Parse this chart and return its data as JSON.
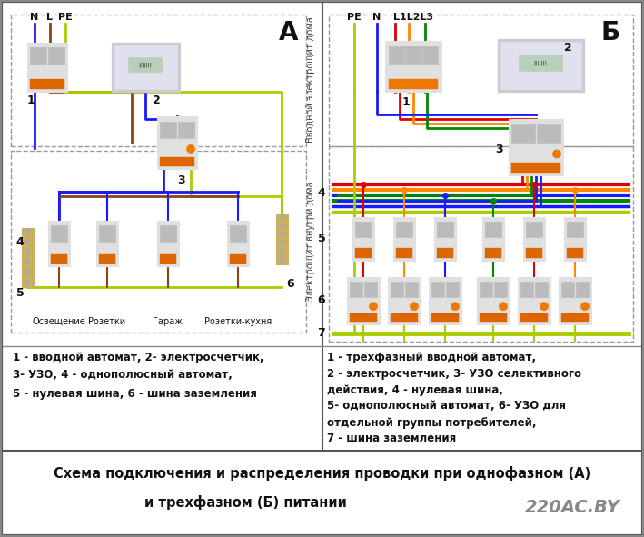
{
  "title_line1": "Схема подключения и распределения проводки при однофазном (А)",
  "title_line2": "и трехфазном (Б) питании",
  "watermark": "220AC.BY",
  "label_A": "А",
  "label_B": "Б",
  "left_legend_line1": "1 - вводной автомат, 2- электросчетчик,",
  "left_legend_line2": "3- УЗО, 4 - однополюсный автомат,",
  "left_legend_line3": "5 - нулевая шина, 6 - шина заземления",
  "right_legend_line1": "1 - трехфазный вводной автомат,",
  "right_legend_line2": "2 - электросчетчик, 3- УЗО селективного",
  "right_legend_line3": "действия, 4 - нулевая шина,",
  "right_legend_line4": "5- однополюсный автомат, 6- УЗО для",
  "right_legend_line5": "отдельной группы потребителей,",
  "right_legend_line6": "7 - шина заземления",
  "left_section_top": "Вводной электрощит дома",
  "left_section_bottom": "Электрощит внутри дома",
  "left_labels": [
    "Освещение",
    "Розетки",
    "Гараж",
    "Розетки-кухня"
  ],
  "wire_blue": "#1a1aff",
  "wire_brown": "#8B4513",
  "wire_yg": "#aacc00",
  "wire_red": "#dd0000",
  "wire_orange": "#ff8800",
  "wire_green": "#008800",
  "wire_yellow": "#ddcc00",
  "fig_width": 7.09,
  "fig_height": 5.91,
  "dpi": 100
}
